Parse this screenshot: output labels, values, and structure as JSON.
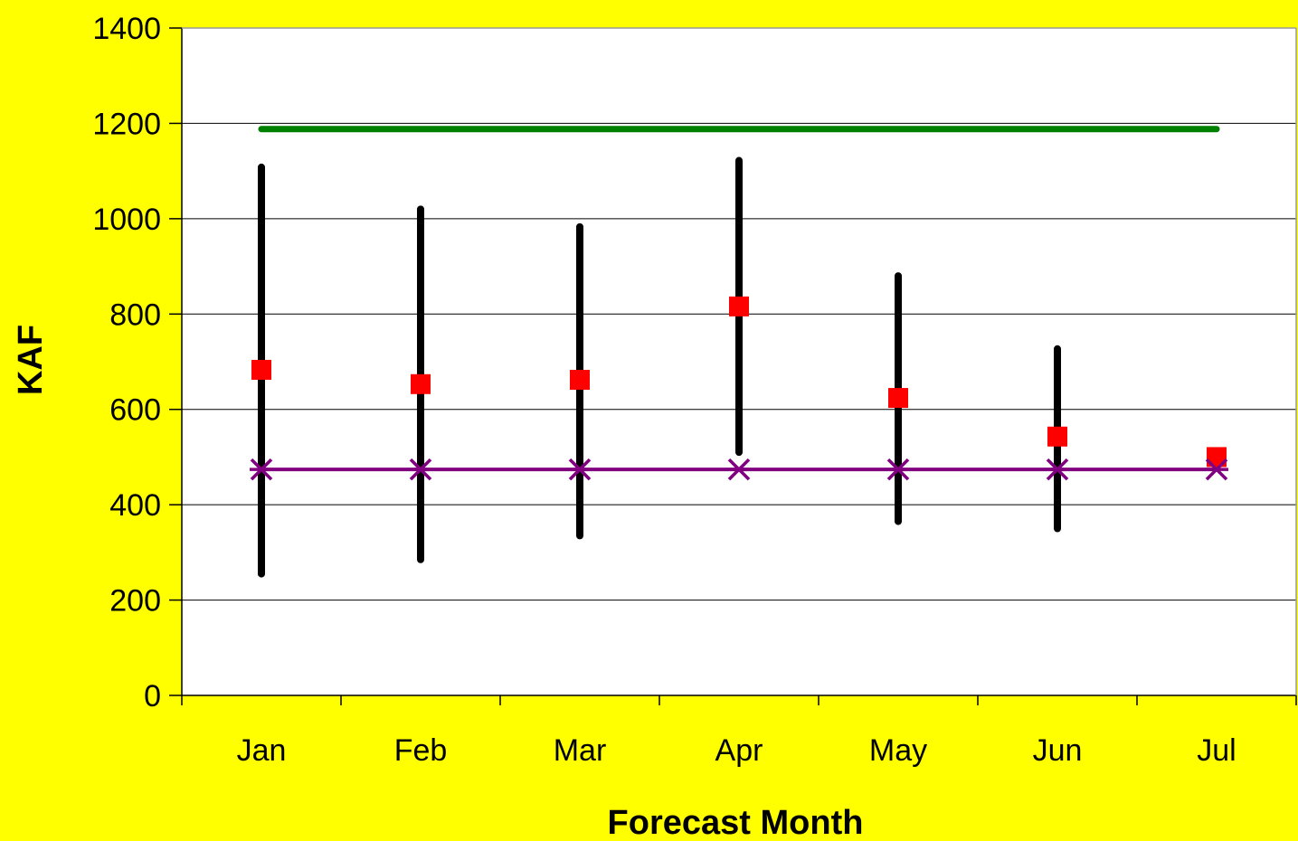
{
  "chart_data": {
    "type": "line",
    "title": "",
    "xlabel": "Forecast Month",
    "ylabel": "KAF",
    "categories": [
      "Jan",
      "Feb",
      "Mar",
      "Apr",
      "May",
      "Jun",
      "Jul"
    ],
    "ylim": [
      0,
      1400
    ],
    "yticks": [
      0,
      200,
      400,
      600,
      800,
      1000,
      1200,
      1400
    ],
    "grid": true,
    "legend": "none",
    "ranges": {
      "color": "#000000",
      "low": [
        255,
        285,
        335,
        510,
        365,
        350,
        null
      ],
      "high": [
        1108,
        1020,
        983,
        1122,
        880,
        727,
        null
      ]
    },
    "series": [
      {
        "values": [
          683,
          653,
          662,
          816,
          624,
          543,
          500
        ],
        "color": "#FF0000",
        "marker": "square"
      },
      {
        "values": [
          474,
          474,
          474,
          474,
          474,
          474,
          474
        ],
        "color": "#800080",
        "marker": "asterisk"
      },
      {
        "values": [
          1188,
          1188,
          1188,
          1188,
          1188,
          1188,
          1188
        ],
        "color": "#008000",
        "marker": "none"
      }
    ],
    "colors": {
      "background": "#FFFF00",
      "plot_area": "#FFFFFF"
    }
  }
}
